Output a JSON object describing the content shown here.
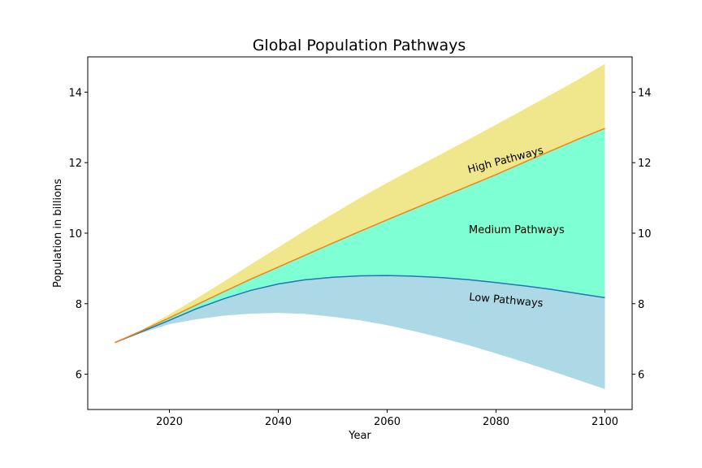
{
  "chart_data": {
    "type": "area",
    "title": "Global Population Pathways",
    "xlabel": "Year",
    "ylabel": "Population in billions",
    "xlim": [
      2005,
      2105
    ],
    "ylim": [
      5,
      15
    ],
    "x_ticks": [
      2020,
      2040,
      2060,
      2080,
      2100
    ],
    "y_ticks": [
      6,
      8,
      10,
      12,
      14
    ],
    "right_y_axis_ticks": [
      6,
      8,
      10,
      12,
      14
    ],
    "grid": false,
    "x": [
      2010,
      2015,
      2020,
      2025,
      2030,
      2035,
      2040,
      2045,
      2050,
      2055,
      2060,
      2065,
      2070,
      2075,
      2080,
      2085,
      2090,
      2095,
      2100
    ],
    "series": [
      {
        "key": "low_bound",
        "values": [
          6.9,
          7.18,
          7.42,
          7.56,
          7.66,
          7.72,
          7.74,
          7.71,
          7.63,
          7.53,
          7.39,
          7.22,
          7.03,
          6.82,
          6.59,
          6.35,
          6.1,
          5.84,
          5.58
        ],
        "color": "#add8e6"
      },
      {
        "key": "medium_lower",
        "values": [
          6.9,
          7.21,
          7.53,
          7.86,
          8.14,
          8.38,
          8.56,
          8.68,
          8.75,
          8.79,
          8.8,
          8.78,
          8.74,
          8.68,
          8.6,
          8.51,
          8.41,
          8.29,
          8.17
        ],
        "color": "#1f77b4"
      },
      {
        "key": "medium_upper",
        "values": [
          6.9,
          7.24,
          7.6,
          7.97,
          8.34,
          8.7,
          9.04,
          9.38,
          9.72,
          10.05,
          10.38,
          10.7,
          11.02,
          11.34,
          11.66,
          12.0,
          12.33,
          12.66,
          12.97
        ],
        "color": "#ff7f0e"
      },
      {
        "key": "high_bound",
        "values": [
          6.9,
          7.26,
          7.7,
          8.15,
          8.63,
          9.12,
          9.6,
          10.08,
          10.54,
          11.0,
          11.43,
          11.84,
          12.25,
          12.66,
          13.08,
          13.5,
          13.92,
          14.35,
          14.8
        ],
        "color": "#f0e68c"
      }
    ],
    "regions": [
      {
        "label": "High Pathways",
        "color": "#f0e68c",
        "label_x": 2075,
        "label_y": 11.7,
        "label_rotation_deg": -15
      },
      {
        "label": "Medium Pathways",
        "color": "#7fffd4",
        "label_x": 2075,
        "label_y": 10.0,
        "label_rotation_deg": 0
      },
      {
        "label": "Low Pathways",
        "color": "#add8e6",
        "label_x": 2075,
        "label_y": 8.1,
        "label_rotation_deg": 5
      }
    ]
  }
}
